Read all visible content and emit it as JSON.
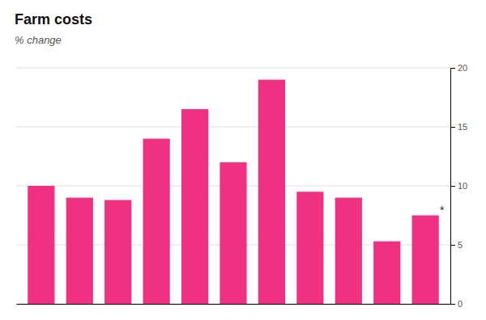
{
  "chart_data": {
    "type": "bar",
    "title": "Farm costs",
    "subtitle": "% change",
    "categories": [
      null,
      null,
      null,
      null,
      null,
      null,
      null,
      null,
      null,
      null,
      null
    ],
    "values": [
      10.0,
      9.0,
      8.8,
      14.0,
      16.5,
      12.0,
      19.0,
      9.5,
      9.0,
      5.3,
      7.5
    ],
    "color": "#F03080",
    "ylim": [
      0,
      20
    ],
    "yticks": [
      0,
      5,
      10,
      15,
      20
    ],
    "grid": true,
    "tick_labels": "y",
    "annotations": [
      {
        "text": "*",
        "index": 10
      }
    ]
  }
}
